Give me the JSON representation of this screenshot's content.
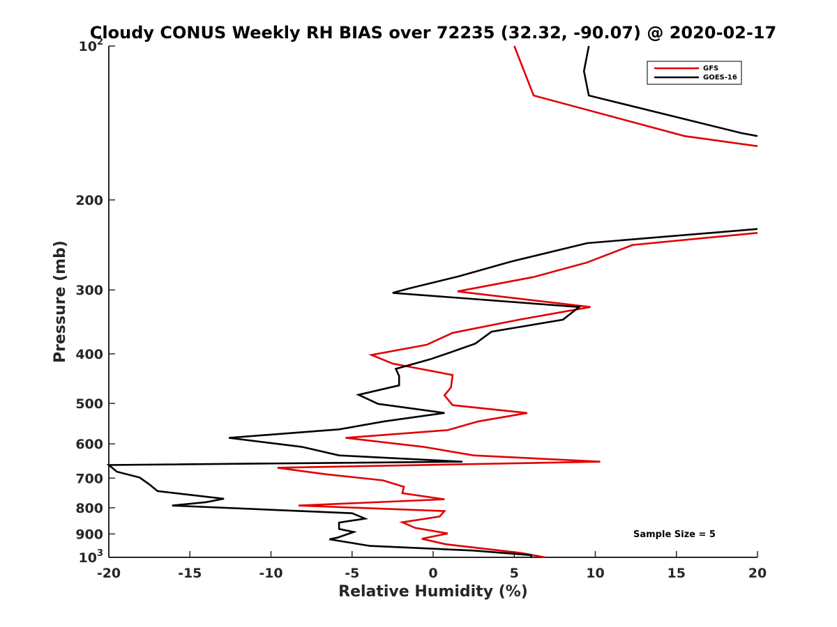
{
  "chart_data": {
    "type": "line",
    "title": "Cloudy CONUS Weekly RH BIAS over 72235 (32.32, -90.07) @ 2020-02-17",
    "xlabel": "Relative Humidity (%)",
    "ylabel": "Pressure (mb)",
    "xlim": [
      -20,
      20
    ],
    "ylim": [
      100,
      1000
    ],
    "y_scale": "log",
    "y_reversed": true,
    "x_ticks": [
      -20,
      -15,
      -10,
      -5,
      0,
      5,
      10,
      15,
      20
    ],
    "x_tick_labels": [
      "-20",
      "-15",
      "-10",
      "-5",
      "0",
      "5",
      "10",
      "15",
      "20"
    ],
    "y_ticks": [
      100,
      200,
      300,
      400,
      500,
      600,
      700,
      800,
      900,
      1000
    ],
    "y_tick_labels": [
      {
        "base": "10",
        "sup": "2"
      },
      {
        "base": "200",
        "sup": ""
      },
      {
        "base": "300",
        "sup": ""
      },
      {
        "base": "400",
        "sup": ""
      },
      {
        "base": "500",
        "sup": ""
      },
      {
        "base": "600",
        "sup": ""
      },
      {
        "base": "700",
        "sup": ""
      },
      {
        "base": "800",
        "sup": ""
      },
      {
        "base": "900",
        "sup": ""
      },
      {
        "base": "10",
        "sup": "3"
      }
    ],
    "grid": false,
    "legend_position": "top-right",
    "annotation": "Sample Size = 5",
    "series": [
      {
        "name": "GFS",
        "color": "#e00000",
        "segments": [
          [
            [
              5,
              100
            ],
            [
              6.2,
              125
            ],
            [
              15.5,
              150
            ],
            [
              20,
              157
            ]
          ],
          [
            [
              20,
              232
            ],
            [
              12.3,
              245
            ],
            [
              9.5,
              265
            ],
            [
              6.2,
              283
            ],
            [
              1.5,
              302
            ],
            [
              9.7,
              324
            ],
            [
              5.3,
              343
            ],
            [
              1.2,
              364
            ],
            [
              -0.4,
              384
            ],
            [
              -3.8,
              402
            ],
            [
              -2.5,
              418
            ],
            [
              1.2,
              440
            ],
            [
              1.1,
              465
            ],
            [
              0.7,
              482
            ],
            [
              1.2,
              504
            ],
            [
              5.8,
              522
            ],
            [
              2.8,
              542
            ],
            [
              0.9,
              564
            ],
            [
              -5.4,
              584
            ],
            [
              -0.6,
              608
            ],
            [
              2.5,
              632
            ],
            [
              10.3,
              650
            ],
            [
              -9.6,
              668
            ],
            [
              -6.6,
              688
            ],
            [
              -3.1,
              707
            ],
            [
              -1.8,
              728
            ],
            [
              -1.9,
              749
            ],
            [
              0.7,
              770
            ],
            [
              -8.3,
              792
            ],
            [
              0.7,
              812
            ],
            [
              0.4,
              832
            ],
            [
              -1.9,
              854
            ],
            [
              -1.1,
              876
            ],
            [
              0.9,
              898
            ],
            [
              -0.7,
              920
            ],
            [
              0.8,
              943
            ],
            [
              3.5,
              965
            ],
            [
              5.4,
              980
            ],
            [
              6.9,
              1000
            ]
          ]
        ]
      },
      {
        "name": "GOES-16",
        "color": "#000000",
        "segments": [
          [
            [
              9.6,
              100
            ],
            [
              9.3,
              112
            ],
            [
              9.6,
              125
            ],
            [
              19,
              148
            ],
            [
              20,
              150
            ]
          ],
          [
            [
              20,
              228
            ],
            [
              9.5,
              243
            ],
            [
              4.8,
              264
            ],
            [
              1.6,
              282
            ],
            [
              -1.5,
              298
            ],
            [
              -2.5,
              304
            ],
            [
              9,
              324
            ],
            [
              8,
              343
            ],
            [
              3.6,
              362
            ],
            [
              2.6,
              382
            ],
            [
              1.1,
              397
            ],
            [
              -0.2,
              410
            ],
            [
              -2.3,
              428
            ],
            [
              -2.1,
              442
            ],
            [
              -2.1,
              461
            ],
            [
              -4.6,
              481
            ],
            [
              -3.4,
              501
            ],
            [
              0.7,
              522
            ],
            [
              -3,
              542
            ],
            [
              -5.8,
              562
            ],
            [
              -12.6,
              584
            ],
            [
              -8.1,
              608
            ],
            [
              -5.8,
              632
            ],
            [
              1.8,
              650
            ],
            [
              -20,
              660
            ],
            [
              -19.5,
              680
            ],
            [
              -18.1,
              698
            ],
            [
              -17.5,
              720
            ],
            [
              -17,
              742
            ],
            [
              -12.9,
              768
            ],
            [
              -14,
              780
            ],
            [
              -16.1,
              792
            ],
            [
              -5,
              820
            ],
            [
              -4.2,
              840
            ],
            [
              -5.8,
              855
            ],
            [
              -5.8,
              880
            ],
            [
              -4.9,
              892
            ],
            [
              -5.9,
              915
            ],
            [
              -6.4,
              922
            ],
            [
              -3.9,
              950
            ],
            [
              2.5,
              970
            ],
            [
              6,
              990
            ],
            [
              6.1,
              1000
            ]
          ]
        ]
      }
    ]
  }
}
